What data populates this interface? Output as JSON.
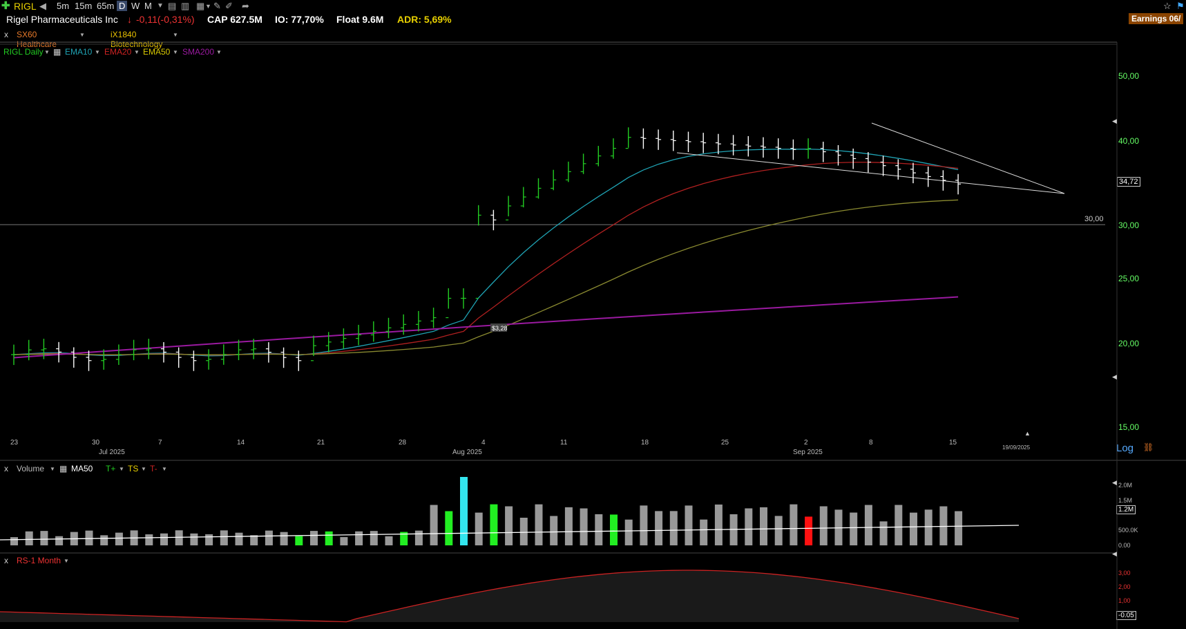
{
  "toolbar": {
    "symbol": "RIGL",
    "timeframes": [
      "5m",
      "15m",
      "65m",
      "D",
      "W",
      "M"
    ],
    "active_timeframe": "D"
  },
  "info": {
    "company": "Rigel Pharmaceuticals Inc",
    "change": "-0,11(-0,31%)",
    "cap": "CAP 627.5M",
    "io": "IO: 77,70%",
    "float": "Float 9.6M",
    "adr": "ADR: 5,69%",
    "earnings": "Earnings 06/"
  },
  "sectors": {
    "close": "x",
    "sector": "SX60 Healthcare",
    "industry": "iX1840 Biotechnology"
  },
  "price_legend": {
    "main": "RIGL Daily",
    "ema10": "EMA10",
    "ema20": "EMA20",
    "ema50": "EMA50",
    "sma200": "SMA200"
  },
  "price_axis": {
    "ticks": [
      "50,00",
      "40,00",
      "30,00",
      "25,00",
      "20,00",
      "15,00"
    ],
    "last_price": "34,72",
    "hline_label": "30,00",
    "log_label": "Log"
  },
  "annotation": "$3,28",
  "x_axis": {
    "days": [
      "23",
      "30",
      "7",
      "14",
      "21",
      "28",
      "4",
      "11",
      "18",
      "25",
      "2",
      "8",
      "15"
    ],
    "months": [
      "Jul 2025",
      "Aug 2025",
      "Sep 2025"
    ],
    "end_date": "19/09/2025"
  },
  "volume_legend": {
    "close": "x",
    "label": "Volume",
    "ma": "MA50",
    "tplus": "T+",
    "ts": "TS",
    "tminus": "T-"
  },
  "volume_axis": {
    "ticks": [
      "2.0M",
      "1.5M",
      "500.0K",
      "0.00"
    ],
    "current": "1.2M"
  },
  "rs_legend": {
    "close": "x",
    "label": "RS-1 Month"
  },
  "rs_axis": {
    "ticks": [
      "3,00",
      "2,00",
      "1,00"
    ],
    "current": "-0.05"
  },
  "colors": {
    "up": "#22cc22",
    "down": "#ffffff",
    "ema10": "#1fa3b4",
    "ema20": "#b02020",
    "ema50": "#8a8a30",
    "sma200": "#9a1aa0",
    "earnings_bg": "#8a4400"
  }
}
